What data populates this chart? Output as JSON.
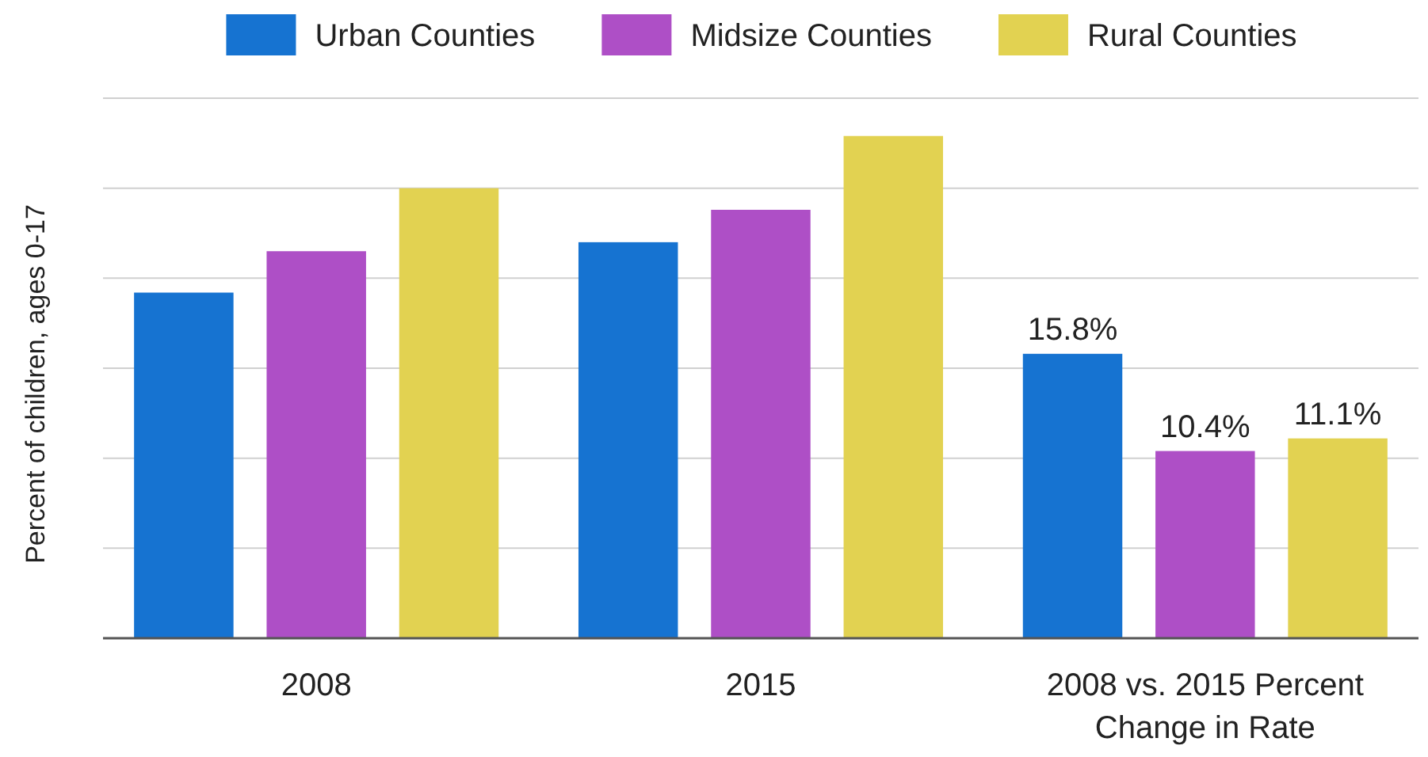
{
  "chart_data": {
    "type": "bar",
    "ylabel": "Percent of children, ages 0-17",
    "legend": "top",
    "grid": "y",
    "ylim": [
      0,
      30
    ],
    "yticks": [
      {
        "value": 0,
        "label": null
      },
      {
        "value": 5,
        "label": null
      },
      {
        "value": 10,
        "label": null
      },
      {
        "value": 15,
        "label": null
      },
      {
        "value": 20,
        "label": null
      },
      {
        "value": 25,
        "label": null
      },
      {
        "value": 30,
        "label": null
      }
    ],
    "categories": [
      "2008",
      "2015",
      "2008 vs. 2015 Percent Change in Rate"
    ],
    "series": [
      {
        "name": "Urban Counties",
        "color": "#1673d1",
        "values": [
          19.2,
          22.0,
          15.8
        ],
        "value_labels": [
          null,
          null,
          "15.8%"
        ]
      },
      {
        "name": "Midsize Counties",
        "color": "#ae4fc6",
        "values": [
          21.5,
          23.8,
          10.4
        ],
        "value_labels": [
          null,
          null,
          "10.4%"
        ]
      },
      {
        "name": "Rural Counties",
        "color": "#e2d251",
        "values": [
          25.0,
          27.9,
          11.1
        ],
        "value_labels": [
          null,
          null,
          "11.1%"
        ]
      }
    ]
  }
}
